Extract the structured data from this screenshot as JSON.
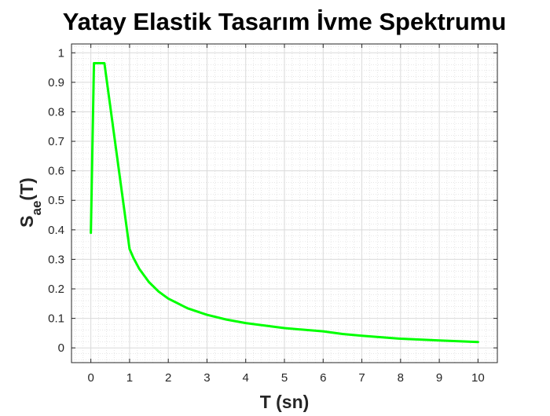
{
  "chart_data": {
    "type": "line",
    "title": "Yatay Elastik Tasarım İvme Spektrumu",
    "xlabel": "T (sn)",
    "ylabel": {
      "base": "S",
      "subscript": "ae",
      "suffix": "(T)"
    },
    "xlim": [
      -0.5,
      10.5
    ],
    "ylim": [
      -0.05,
      1.03
    ],
    "xticks": [
      0,
      1,
      2,
      3,
      4,
      5,
      6,
      7,
      8,
      9,
      10
    ],
    "yticks": [
      0,
      0.1,
      0.2,
      0.3,
      0.4,
      0.5,
      0.6,
      0.7,
      0.8,
      0.9,
      1
    ],
    "grid": "major and minor",
    "series": [
      {
        "color": "#00ff00",
        "x": [
          0,
          0.08,
          0.35,
          1.0,
          1.1,
          1.25,
          1.5,
          1.75,
          2.0,
          2.5,
          3.0,
          3.5,
          4.0,
          5.0,
          6.0,
          6.5,
          7.0,
          8.0,
          9.0,
          10.0
        ],
        "y": [
          0.39,
          0.965,
          0.965,
          0.335,
          0.305,
          0.268,
          0.223,
          0.191,
          0.167,
          0.134,
          0.112,
          0.096,
          0.084,
          0.067,
          0.056,
          0.047,
          0.041,
          0.031,
          0.025,
          0.02
        ]
      }
    ]
  }
}
